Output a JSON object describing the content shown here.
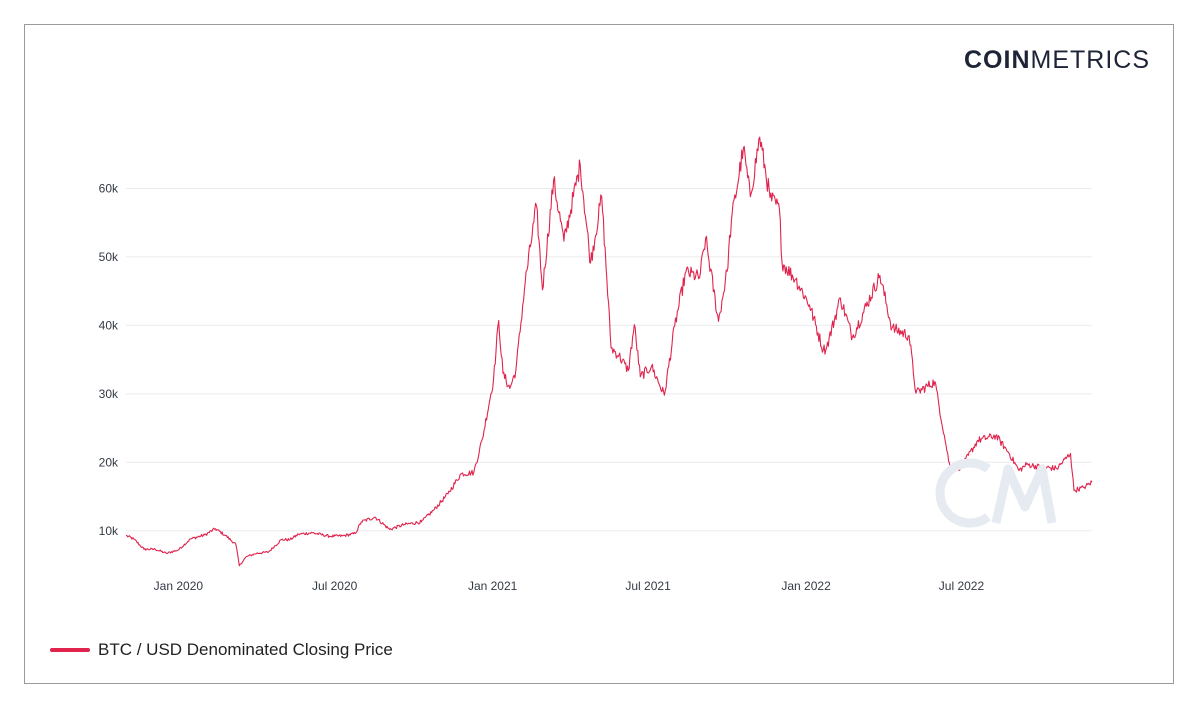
{
  "brand": {
    "bold": "COIN",
    "light": "METRICS",
    "text_color": "#1e2438"
  },
  "chart_data": {
    "type": "line",
    "title": "",
    "xlabel": "",
    "ylabel": "",
    "x_range": [
      "2019-11-01",
      "2022-11-30"
    ],
    "ylim": [
      5000,
      70000
    ],
    "y_ticks": [
      {
        "value": 10000,
        "label": "10k"
      },
      {
        "value": 20000,
        "label": "20k"
      },
      {
        "value": 30000,
        "label": "30k"
      },
      {
        "value": 40000,
        "label": "40k"
      },
      {
        "value": 50000,
        "label": "50k"
      },
      {
        "value": 60000,
        "label": "60k"
      }
    ],
    "x_ticks": [
      {
        "date": "2020-01-01",
        "label": "Jan 2020"
      },
      {
        "date": "2020-07-01",
        "label": "Jul 2020"
      },
      {
        "date": "2021-01-01",
        "label": "Jan 2021"
      },
      {
        "date": "2021-07-01",
        "label": "Jul 2021"
      },
      {
        "date": "2022-01-01",
        "label": "Jan 2022"
      },
      {
        "date": "2022-07-01",
        "label": "Jul 2022"
      }
    ],
    "grid": "horizontal",
    "legend_position": "bottom-left",
    "series": [
      {
        "name": "BTC / USD Denominated Closing Price",
        "color": "#e0244d",
        "points": [
          [
            "2019-11-01",
            9300
          ],
          [
            "2019-11-10",
            8800
          ],
          [
            "2019-11-22",
            7300
          ],
          [
            "2019-12-05",
            7300
          ],
          [
            "2019-12-18",
            6700
          ],
          [
            "2020-01-01",
            7200
          ],
          [
            "2020-01-15",
            8800
          ],
          [
            "2020-02-01",
            9400
          ],
          [
            "2020-02-13",
            10300
          ],
          [
            "2020-02-25",
            9300
          ],
          [
            "2020-03-08",
            8000
          ],
          [
            "2020-03-12",
            4900
          ],
          [
            "2020-03-20",
            6200
          ],
          [
            "2020-04-01",
            6700
          ],
          [
            "2020-04-15",
            6900
          ],
          [
            "2020-04-30",
            8700
          ],
          [
            "2020-05-10",
            8700
          ],
          [
            "2020-05-20",
            9500
          ],
          [
            "2020-06-05",
            9700
          ],
          [
            "2020-06-25",
            9200
          ],
          [
            "2020-07-10",
            9250
          ],
          [
            "2020-07-25",
            9600
          ],
          [
            "2020-08-01",
            11300
          ],
          [
            "2020-08-17",
            12000
          ],
          [
            "2020-09-03",
            10200
          ],
          [
            "2020-09-20",
            10900
          ],
          [
            "2020-10-10",
            11300
          ],
          [
            "2020-10-25",
            13100
          ],
          [
            "2020-11-10",
            15400
          ],
          [
            "2020-11-25",
            18300
          ],
          [
            "2020-12-10",
            18500
          ],
          [
            "2020-12-20",
            23400
          ],
          [
            "2021-01-02",
            32100
          ],
          [
            "2021-01-08",
            40700
          ],
          [
            "2021-01-13",
            33000
          ],
          [
            "2021-01-21",
            30800
          ],
          [
            "2021-01-28",
            33400
          ],
          [
            "2021-02-08",
            46400
          ],
          [
            "2021-02-21",
            57500
          ],
          [
            "2021-02-28",
            45200
          ],
          [
            "2021-03-13",
            61200
          ],
          [
            "2021-03-25",
            52300
          ],
          [
            "2021-04-13",
            63500
          ],
          [
            "2021-04-25",
            49100
          ],
          [
            "2021-05-08",
            58800
          ],
          [
            "2021-05-19",
            36700
          ],
          [
            "2021-05-28",
            35600
          ],
          [
            "2021-06-08",
            33400
          ],
          [
            "2021-06-15",
            40100
          ],
          [
            "2021-06-22",
            32500
          ],
          [
            "2021-07-05",
            34000
          ],
          [
            "2021-07-20",
            29800
          ],
          [
            "2021-08-01",
            39900
          ],
          [
            "2021-08-14",
            47800
          ],
          [
            "2021-08-30",
            47000
          ],
          [
            "2021-09-06",
            52700
          ],
          [
            "2021-09-21",
            40600
          ],
          [
            "2021-10-01",
            47900
          ],
          [
            "2021-10-06",
            55300
          ],
          [
            "2021-10-20",
            65900
          ],
          [
            "2021-10-28",
            58800
          ],
          [
            "2021-11-08",
            67500
          ],
          [
            "2021-11-20",
            58700
          ],
          [
            "2021-12-01",
            57000
          ],
          [
            "2021-12-04",
            49200
          ],
          [
            "2021-12-20",
            46700
          ],
          [
            "2022-01-05",
            43000
          ],
          [
            "2022-01-21",
            36400
          ],
          [
            "2022-01-25",
            36800
          ],
          [
            "2022-02-10",
            44000
          ],
          [
            "2022-02-24",
            38300
          ],
          [
            "2022-03-28",
            47300
          ],
          [
            "2022-04-11",
            39600
          ],
          [
            "2022-05-01",
            38500
          ],
          [
            "2022-05-09",
            30100
          ],
          [
            "2022-05-31",
            31800
          ],
          [
            "2022-06-13",
            22500
          ],
          [
            "2022-06-18",
            19000
          ],
          [
            "2022-07-01",
            19300
          ],
          [
            "2022-07-20",
            23200
          ],
          [
            "2022-08-10",
            23900
          ],
          [
            "2022-08-25",
            21400
          ],
          [
            "2022-09-06",
            18800
          ],
          [
            "2022-09-15",
            19700
          ],
          [
            "2022-10-01",
            19300
          ],
          [
            "2022-10-20",
            19100
          ],
          [
            "2022-11-05",
            21300
          ],
          [
            "2022-11-09",
            15900
          ],
          [
            "2022-11-20",
            16300
          ],
          [
            "2022-11-30",
            17100
          ]
        ]
      }
    ]
  }
}
